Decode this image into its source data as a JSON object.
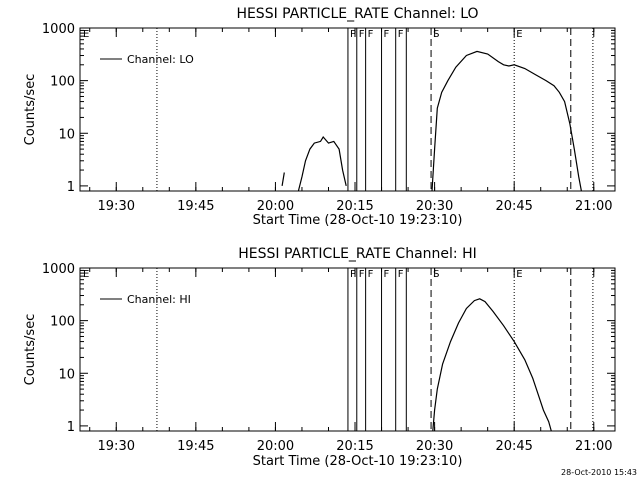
{
  "chart_data": [
    {
      "type": "line",
      "title": "HESSI PARTICLE_RATE Channel: LO",
      "xlabel": "Start Time (28-Oct-10 19:23:10)",
      "ylabel": "Counts/sec",
      "yscale": "log",
      "ylim": [
        0.8,
        1000
      ],
      "xlim": [
        "19:23:10",
        "21:04:00"
      ],
      "x_ticks": [
        "19:30",
        "19:45",
        "20:00",
        "20:15",
        "20:30",
        "20:45",
        "21:00"
      ],
      "y_ticks": [
        "1",
        "10",
        "100",
        "1000"
      ],
      "legend": {
        "position": "top-left",
        "entries": [
          "Channel: LO"
        ]
      },
      "series": [
        {
          "name": "Channel: LO",
          "segments": [
            [
              [
                "20:01:15",
                1
              ],
              [
                "20:01:40",
                1.8
              ]
            ],
            [
              [
                "20:04:20",
                0.8
              ],
              [
                "20:05:00",
                1.5
              ],
              [
                "20:05:40",
                3
              ],
              [
                "20:06:30",
                5
              ],
              [
                "20:07:20",
                6.5
              ],
              [
                "20:08:30",
                7
              ],
              [
                "20:09:00",
                8.5
              ],
              [
                "20:10:00",
                6.5
              ],
              [
                "20:11:00",
                7
              ],
              [
                "20:12:00",
                5
              ],
              [
                "20:12:40",
                2
              ],
              [
                "20:13:20",
                1
              ]
            ],
            [
              [
                "20:29:30",
                0.8
              ],
              [
                "20:30:00",
                5
              ],
              [
                "20:30:30",
                30
              ],
              [
                "20:31:20",
                60
              ],
              [
                "20:32:30",
                100
              ],
              [
                "20:34:00",
                180
              ],
              [
                "20:36:00",
                300
              ],
              [
                "20:38:00",
                360
              ],
              [
                "20:40:00",
                320
              ],
              [
                "20:42:00",
                230
              ],
              [
                "20:43:00",
                200
              ],
              [
                "20:44:00",
                190
              ],
              [
                "20:45:00",
                200
              ],
              [
                "20:47:00",
                170
              ],
              [
                "20:49:00",
                130
              ],
              [
                "20:51:00",
                100
              ],
              [
                "20:52:30",
                80
              ],
              [
                "20:53:30",
                60
              ],
              [
                "20:54:30",
                40
              ],
              [
                "20:55:30",
                15
              ],
              [
                "20:56:20",
                5
              ],
              [
                "20:57:10",
                1.5
              ],
              [
                "20:57:40",
                0.8
              ]
            ]
          ]
        }
      ],
      "markers": [
        {
          "time": "19:37:40",
          "style": "dotted",
          "label": ""
        },
        {
          "time": "20:13:40",
          "style": "solid",
          "label": "P"
        },
        {
          "time": "20:15:20",
          "style": "solid",
          "label": "F"
        },
        {
          "time": "20:17:00",
          "style": "solid",
          "label": "F"
        },
        {
          "time": "20:20:00",
          "style": "solid",
          "label": "F"
        },
        {
          "time": "20:22:40",
          "style": "solid",
          "label": "F"
        },
        {
          "time": "20:24:40",
          "style": "solid",
          "label": ""
        },
        {
          "time": "20:29:20",
          "style": "dashed",
          "label": "S"
        },
        {
          "time": "20:45:00",
          "style": "dotted",
          "label": "E"
        },
        {
          "time": "20:55:40",
          "style": "dashed",
          "label": ""
        },
        {
          "time": "20:59:50",
          "style": "dotted",
          "label": ""
        }
      ],
      "corner_marker_label": "E"
    },
    {
      "type": "line",
      "title": "HESSI PARTICLE_RATE Channel: HI",
      "xlabel": "Start Time (28-Oct-10 19:23:10)",
      "ylabel": "Counts/sec",
      "yscale": "log",
      "ylim": [
        0.8,
        1000
      ],
      "xlim": [
        "19:23:10",
        "21:04:00"
      ],
      "x_ticks": [
        "19:30",
        "19:45",
        "20:00",
        "20:15",
        "20:30",
        "20:45",
        "21:00"
      ],
      "y_ticks": [
        "1",
        "10",
        "100",
        "1000"
      ],
      "legend": {
        "position": "top-left",
        "entries": [
          "Channel: HI"
        ]
      },
      "series": [
        {
          "name": "Channel: HI",
          "segments": [
            [
              [
                "20:29:40",
                0.8
              ],
              [
                "20:30:00",
                2
              ],
              [
                "20:30:30",
                5
              ],
              [
                "20:31:30",
                15
              ],
              [
                "20:33:00",
                40
              ],
              [
                "20:34:30",
                90
              ],
              [
                "20:36:00",
                170
              ],
              [
                "20:37:30",
                240
              ],
              [
                "20:38:30",
                260
              ],
              [
                "20:39:30",
                230
              ],
              [
                "20:41:00",
                150
              ],
              [
                "20:43:00",
                80
              ],
              [
                "20:45:00",
                40
              ],
              [
                "20:47:00",
                18
              ],
              [
                "20:48:30",
                8
              ],
              [
                "20:49:30",
                4
              ],
              [
                "20:50:30",
                2
              ],
              [
                "20:51:30",
                1.2
              ],
              [
                "20:52:00",
                0.8
              ]
            ]
          ]
        }
      ],
      "markers": [
        {
          "time": "19:37:40",
          "style": "dotted",
          "label": ""
        },
        {
          "time": "20:13:40",
          "style": "solid",
          "label": "P"
        },
        {
          "time": "20:15:20",
          "style": "solid",
          "label": "F"
        },
        {
          "time": "20:17:00",
          "style": "solid",
          "label": "F"
        },
        {
          "time": "20:20:00",
          "style": "solid",
          "label": "F"
        },
        {
          "time": "20:22:40",
          "style": "solid",
          "label": "F"
        },
        {
          "time": "20:24:40",
          "style": "solid",
          "label": ""
        },
        {
          "time": "20:29:20",
          "style": "dashed",
          "label": "S"
        },
        {
          "time": "20:45:00",
          "style": "dotted",
          "label": "E"
        },
        {
          "time": "20:55:40",
          "style": "dashed",
          "label": ""
        },
        {
          "time": "20:59:50",
          "style": "dotted",
          "label": ""
        }
      ],
      "corner_marker_label": "E"
    }
  ],
  "footer": {
    "timestamp": "28-Oct-2010 15:43"
  }
}
